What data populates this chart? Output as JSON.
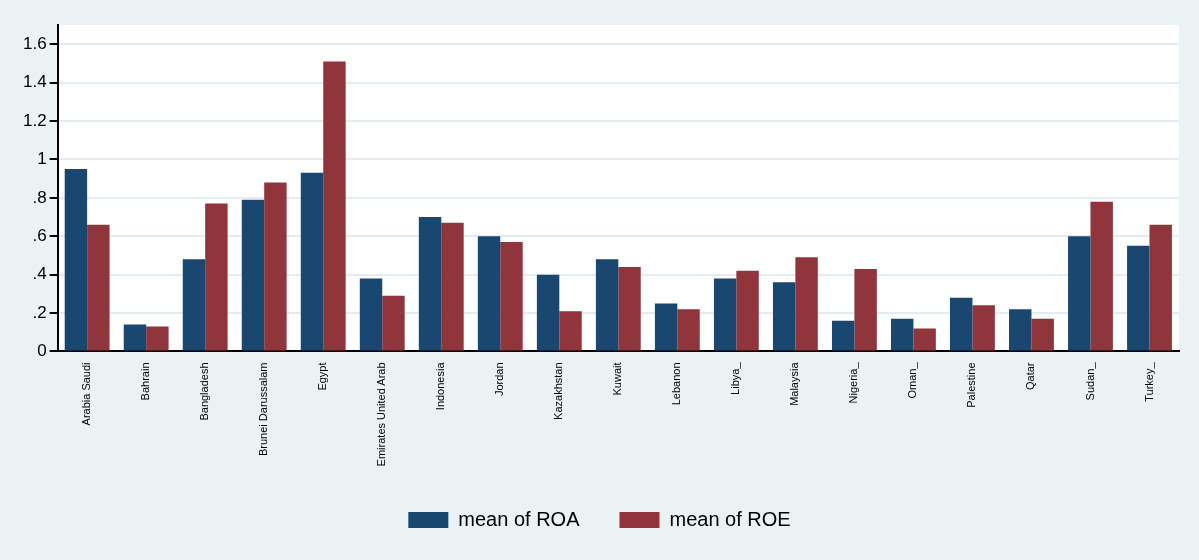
{
  "chart_data": {
    "type": "bar",
    "categories": [
      "Arabia Saudi",
      "Bahrain",
      "Bangladesh",
      "Brunei Darussalam",
      "Egypt",
      "Emirates United Arab",
      "Indonesia",
      "Jordan",
      "Kazakhstan",
      "Kuwait",
      "Lebanon",
      "Libya_",
      "Malaysia",
      "Nigeria_",
      "Oman_",
      "Palestine",
      "Qatar",
      "Sudan_",
      "Turkey_"
    ],
    "series": [
      {
        "name": "mean of ROA",
        "color": "#1a476f",
        "values": [
          0.95,
          0.14,
          0.48,
          0.79,
          0.93,
          0.38,
          0.7,
          0.6,
          0.4,
          0.48,
          0.25,
          0.38,
          0.36,
          0.16,
          0.17,
          0.28,
          0.22,
          0.6,
          0.55
        ]
      },
      {
        "name": "mean of ROE",
        "color": "#90353b",
        "values": [
          0.66,
          0.13,
          0.77,
          0.88,
          1.51,
          0.29,
          0.67,
          0.57,
          0.21,
          0.44,
          0.22,
          0.42,
          0.49,
          0.43,
          0.12,
          0.24,
          0.17,
          0.78,
          0.66
        ]
      }
    ],
    "ylim": [
      0,
      1.7
    ],
    "yticks": [
      0,
      {
        "value": 0.2,
        "label": ".2"
      },
      {
        "value": 0.4,
        "label": ".4"
      },
      {
        "value": 0.6,
        "label": ".6"
      },
      {
        "value": 0.8,
        "label": ".8"
      },
      1,
      1.2,
      1.4,
      1.6
    ],
    "grid": "y",
    "legend": "bottom"
  }
}
